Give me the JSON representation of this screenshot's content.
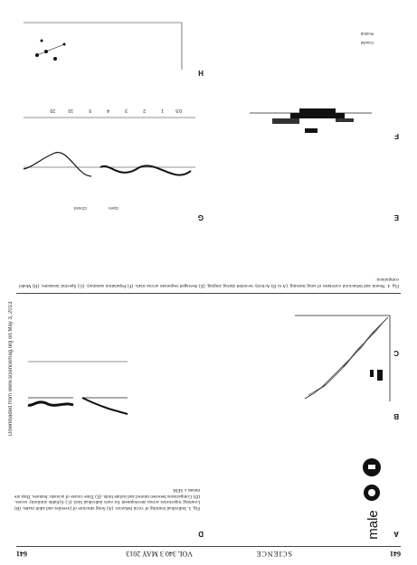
{
  "header": {
    "page_left": "641",
    "journal": "SCIENCE",
    "volume_line": "VOL 340  3 MAY 2013",
    "page_right": "641"
  },
  "side_note": "Downloaded from www.sciencemag.org on May 3, 2013",
  "panel_labels": [
    "A",
    "B",
    "C",
    "D",
    "E",
    "F",
    "G",
    "H"
  ],
  "figure_words": [
    "male",
    "Caudal",
    "Rostral"
  ],
  "axis_ticks": [
    "0.5",
    "1",
    "2",
    "3",
    "4",
    "5",
    "10",
    "20"
  ],
  "legend": {
    "open": "Open",
    "closed": "Closed"
  },
  "caption_top": "Fig. 3. Individual learning of vocal behavior. (A) Song structure of juveniles and adult males. (B) Learning trajectories across development for each individual bird. (C) Syllable similarity scores. (D) Comparisons between tutored and isolate birds. (E) Time course of acoustic features. Data are means ± SEM.",
  "caption_bottom": "Fig. 4. Neural and behavioral correlates of song learning. (A to D) Activity recorded during singing. (E) Averaged responses across trials. (F) Population summary. (G) Spectral measures. (H) Model comparison."
}
